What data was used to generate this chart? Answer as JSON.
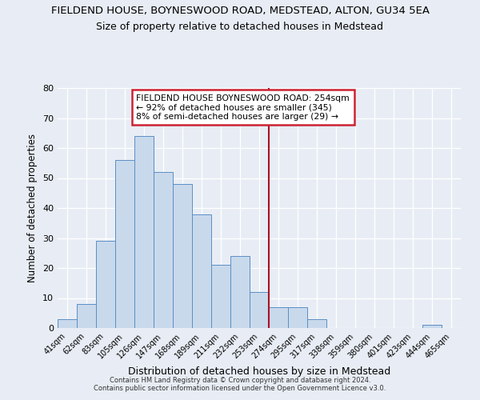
{
  "title1": "FIELDEND HOUSE, BOYNESWOOD ROAD, MEDSTEAD, ALTON, GU34 5EA",
  "title2": "Size of property relative to detached houses in Medstead",
  "xlabel": "Distribution of detached houses by size in Medstead",
  "ylabel": "Number of detached properties",
  "bin_labels": [
    "41sqm",
    "62sqm",
    "83sqm",
    "105sqm",
    "126sqm",
    "147sqm",
    "168sqm",
    "189sqm",
    "211sqm",
    "232sqm",
    "253sqm",
    "274sqm",
    "295sqm",
    "317sqm",
    "338sqm",
    "359sqm",
    "380sqm",
    "401sqm",
    "423sqm",
    "444sqm",
    "465sqm"
  ],
  "bar_values": [
    3,
    8,
    29,
    56,
    64,
    52,
    48,
    38,
    21,
    24,
    12,
    7,
    7,
    3,
    0,
    0,
    0,
    0,
    0,
    1,
    0
  ],
  "bar_color": "#c9d9ec",
  "bar_edgecolor": "#5b8ec4",
  "vline_pos": 10.5,
  "vline_color": "#aa1122",
  "annotation_text_line1": "FIELDEND HOUSE BOYNESWOOD ROAD: 254sqm",
  "annotation_text_line2": "← 92% of detached houses are smaller (345)",
  "annotation_text_line3": "8% of semi-detached houses are larger (29) →",
  "annotation_box_color": "#ffffff",
  "annotation_border_color": "#cc2233",
  "footer1": "Contains HM Land Registry data © Crown copyright and database right 2024.",
  "footer2": "Contains public sector information licensed under the Open Government Licence v3.0.",
  "ylim": [
    0,
    80
  ],
  "yticks": [
    0,
    10,
    20,
    30,
    40,
    50,
    60,
    70,
    80
  ],
  "background_color": "#e8edf5",
  "grid_color": "#ffffff"
}
